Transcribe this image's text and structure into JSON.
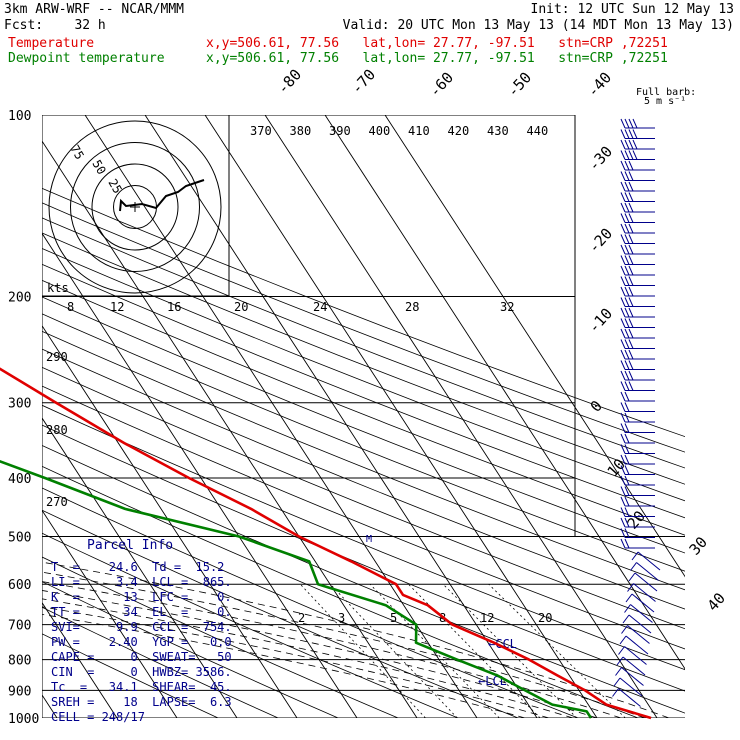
{
  "header": {
    "line1_left": "3km ARW-WRF -- NCAR/MMM",
    "line1_right": "Init: 12 UTC Sun 12 May 13",
    "line2_left": "Fcst:    32 h",
    "line2_right": "Valid: 20 UTC Mon 13 May 13 (14 MDT Mon 13 May 13)",
    "temp_label": "Temperature",
    "temp_info": "x,y=506.61, 77.56   lat,lon= 27.77, -97.51   stn=CRP ,72251",
    "dew_label": "Dewpoint temperature",
    "dew_info": "x,y=506.61, 77.56   lat,lon= 27.77, -97.51   stn=CRP ,72251"
  },
  "colors": {
    "temperature": "#e00000",
    "dewpoint": "#008000",
    "text": "#00008b"
  },
  "chart_data": {
    "type": "line",
    "pressure_ticks": [
      "100",
      "200",
      "300",
      "400",
      "500",
      "600",
      "700",
      "800",
      "900",
      "1000"
    ],
    "isotherm_labels": [
      "-80",
      "-70",
      "-60",
      "-50",
      "-40",
      "-30",
      "-20",
      "-10",
      "0",
      "10",
      "20",
      "30",
      "40"
    ],
    "theta_labels": [
      "370",
      "380",
      "390",
      "400",
      "410",
      "420",
      "430",
      "440"
    ],
    "dry_adiabat_labels": [
      "290",
      "280",
      "270"
    ],
    "mixing_ratio_labels": [
      "2",
      "3",
      "5",
      "8",
      "12",
      "20"
    ],
    "moist_adiabat_labels": [
      "8",
      "12",
      "16",
      "20",
      "24",
      "28",
      "32"
    ],
    "ccl_label": "←CCL",
    "lcl_label": "←LCL",
    "wind_barb_legend": "Full barb:",
    "wind_barb_units": "5 m s⁻¹",
    "hodograph": {
      "units": "kts",
      "rings": [
        "75",
        "50",
        "25"
      ]
    },
    "series": [
      {
        "name": "Temperature",
        "points": [
          [
            100,
            -71
          ],
          [
            120,
            -66
          ],
          [
            140,
            -62
          ],
          [
            160,
            -61
          ],
          [
            180,
            -55
          ],
          [
            200,
            -52
          ],
          [
            250,
            -44
          ],
          [
            300,
            -36
          ],
          [
            350,
            -29
          ],
          [
            400,
            -22
          ],
          [
            450,
            -15
          ],
          [
            500,
            -10
          ],
          [
            550,
            -4
          ],
          [
            600,
            1
          ],
          [
            625,
            1
          ],
          [
            650,
            4
          ],
          [
            700,
            6
          ],
          [
            750,
            11
          ],
          [
            800,
            15
          ],
          [
            850,
            18
          ],
          [
            900,
            21
          ],
          [
            950,
            23
          ],
          [
            1000,
            29
          ]
        ]
      },
      {
        "name": "Dewpoint temperature",
        "points": [
          [
            100,
            -76
          ],
          [
            150,
            -80
          ],
          [
            200,
            -84
          ],
          [
            250,
            -86
          ],
          [
            280,
            -84
          ],
          [
            300,
            -80
          ],
          [
            320,
            -68
          ],
          [
            345,
            -55
          ],
          [
            370,
            -53
          ],
          [
            400,
            -46
          ],
          [
            450,
            -36
          ],
          [
            500,
            -20
          ],
          [
            550,
            -11
          ],
          [
            600,
            -12
          ],
          [
            650,
            -3
          ],
          [
            700,
            0
          ],
          [
            750,
            -2
          ],
          [
            800,
            3
          ],
          [
            850,
            8
          ],
          [
            900,
            11
          ],
          [
            950,
            14
          ],
          [
            975,
            19
          ],
          [
            1000,
            19
          ]
        ]
      }
    ]
  },
  "parcel_info": {
    "title": "Parcel Info",
    "rows": [
      "T  =    24.6  Td =  15.2",
      "LI =     3.4  LCL =  865.",
      "K  =      13  LFC =    0.",
      "TT =      34  EL  =    0.",
      "SVI=     9.9  CCL =  754.",
      "PW =    2.40  YGP =   0.0",
      "CAPE =     0  SWEAT=   50",
      "CIN  =     0  HWBZ= 3586.",
      "Tc  =   34.1  SHEAR=  45.",
      "SREH =    18  LAPSE=  6.3",
      "CELL = 248/17"
    ]
  }
}
